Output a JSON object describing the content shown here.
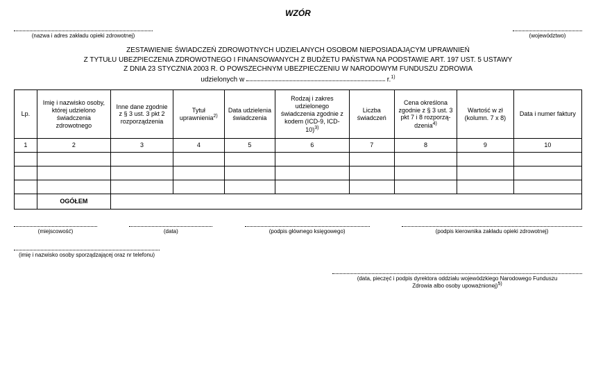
{
  "header": {
    "wzor": "WZÓR",
    "left_field_label": "(nazwa i adres zakładu opieki zdrowotnej)",
    "right_field_label": "(województwo)"
  },
  "title": {
    "line1": "ZESTAWIENIE ŚWIADCZEŃ ZDROWOTNYCH UDZIELANYCH OSOBOM NIEPOSIADAJĄCYM UPRAWNIEŃ",
    "line2": "Z TYTUŁU UBEZPIECZENIA ZDROWOTNEGO I FINANSOWANYCH Z BUDŻETU PAŃSTWA NA PODSTAWIE ART. 197 UST. 5 USTAWY",
    "line3": "Z DNIA 23 STYCZNIA 2003 R. O POWSZECHNYM UBEZPIECZENIU W NARODOWYM FUNDUSZU ZDROWIA",
    "line4_prefix": "udzielonych w",
    "line4_suffix": "r.",
    "line4_sup": "1)"
  },
  "table": {
    "columns": [
      {
        "header": "Lp.",
        "width": "4%"
      },
      {
        "header": "Imię i nazwisko osoby, której udzielono świadczenia zdrowotnego",
        "width": "13%"
      },
      {
        "header": "Inne dane zgodnie z § 3 ust. 3 pkt 2 rozporzą­dzenia",
        "width": "11%"
      },
      {
        "header": "Tytuł uprawnienia",
        "sup": "2)",
        "width": "9%"
      },
      {
        "header": "Data udzielenia świadczenia",
        "width": "9%"
      },
      {
        "header": "Rodzaj i zakres udzielonego świadczenia zgodnie z kodem (ICD-9, ICD-10)",
        "sup": "3)",
        "width": "13%"
      },
      {
        "header": "Liczba świadczeń",
        "width": "8%"
      },
      {
        "header": "Cena określona zgodnie z § 3 ust. 3 pkt 7 i 8 rozporzą­dzenia",
        "sup": "4)",
        "width": "11%"
      },
      {
        "header": "Wartość w zł (kolumn. 7 x 8)",
        "width": "10%"
      },
      {
        "header": "Data i numer faktury",
        "width": "12%"
      }
    ],
    "numbers": [
      "1",
      "2",
      "3",
      "4",
      "5",
      "6",
      "7",
      "8",
      "9",
      "10"
    ],
    "empty_rows": 3,
    "ogolem_label": "OGÓŁEM"
  },
  "signatures": {
    "miejscowosc": "(miejscowość)",
    "data": "(data)",
    "ksiegowy": "(podpis głównego księgowego)",
    "kierownik": "(podpis kierownika zakładu opieki zdrowotnej)",
    "sporzadzajacy": "(imię i nazwisko osoby sporządzającej oraz nr telefonu)",
    "dyrektor_line1": "(data, pieczęć i podpis dyrektora oddziału wojewódzkiego  Narodowego Funduszu",
    "dyrektor_line2": "Zdrowia albo osoby upoważnionej)",
    "dyrektor_sup": "5)"
  }
}
